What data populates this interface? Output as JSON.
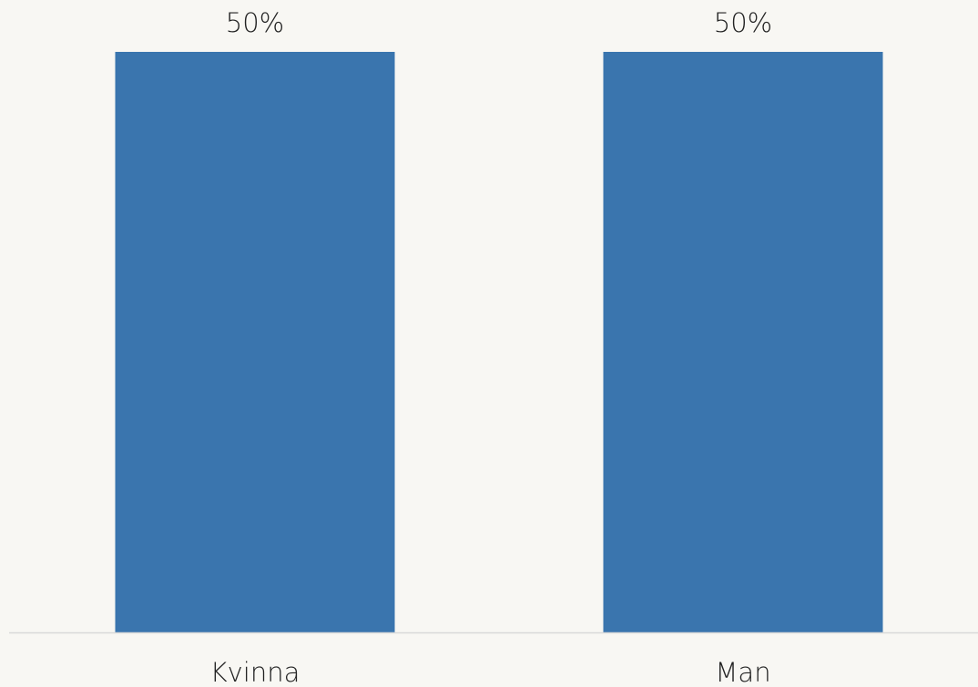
{
  "chart_data": {
    "type": "bar",
    "categories": [
      "Kvinna",
      "Man"
    ],
    "values": [
      50,
      50
    ],
    "value_labels": [
      "50%",
      "50%"
    ],
    "color": "#3a75ae"
  }
}
